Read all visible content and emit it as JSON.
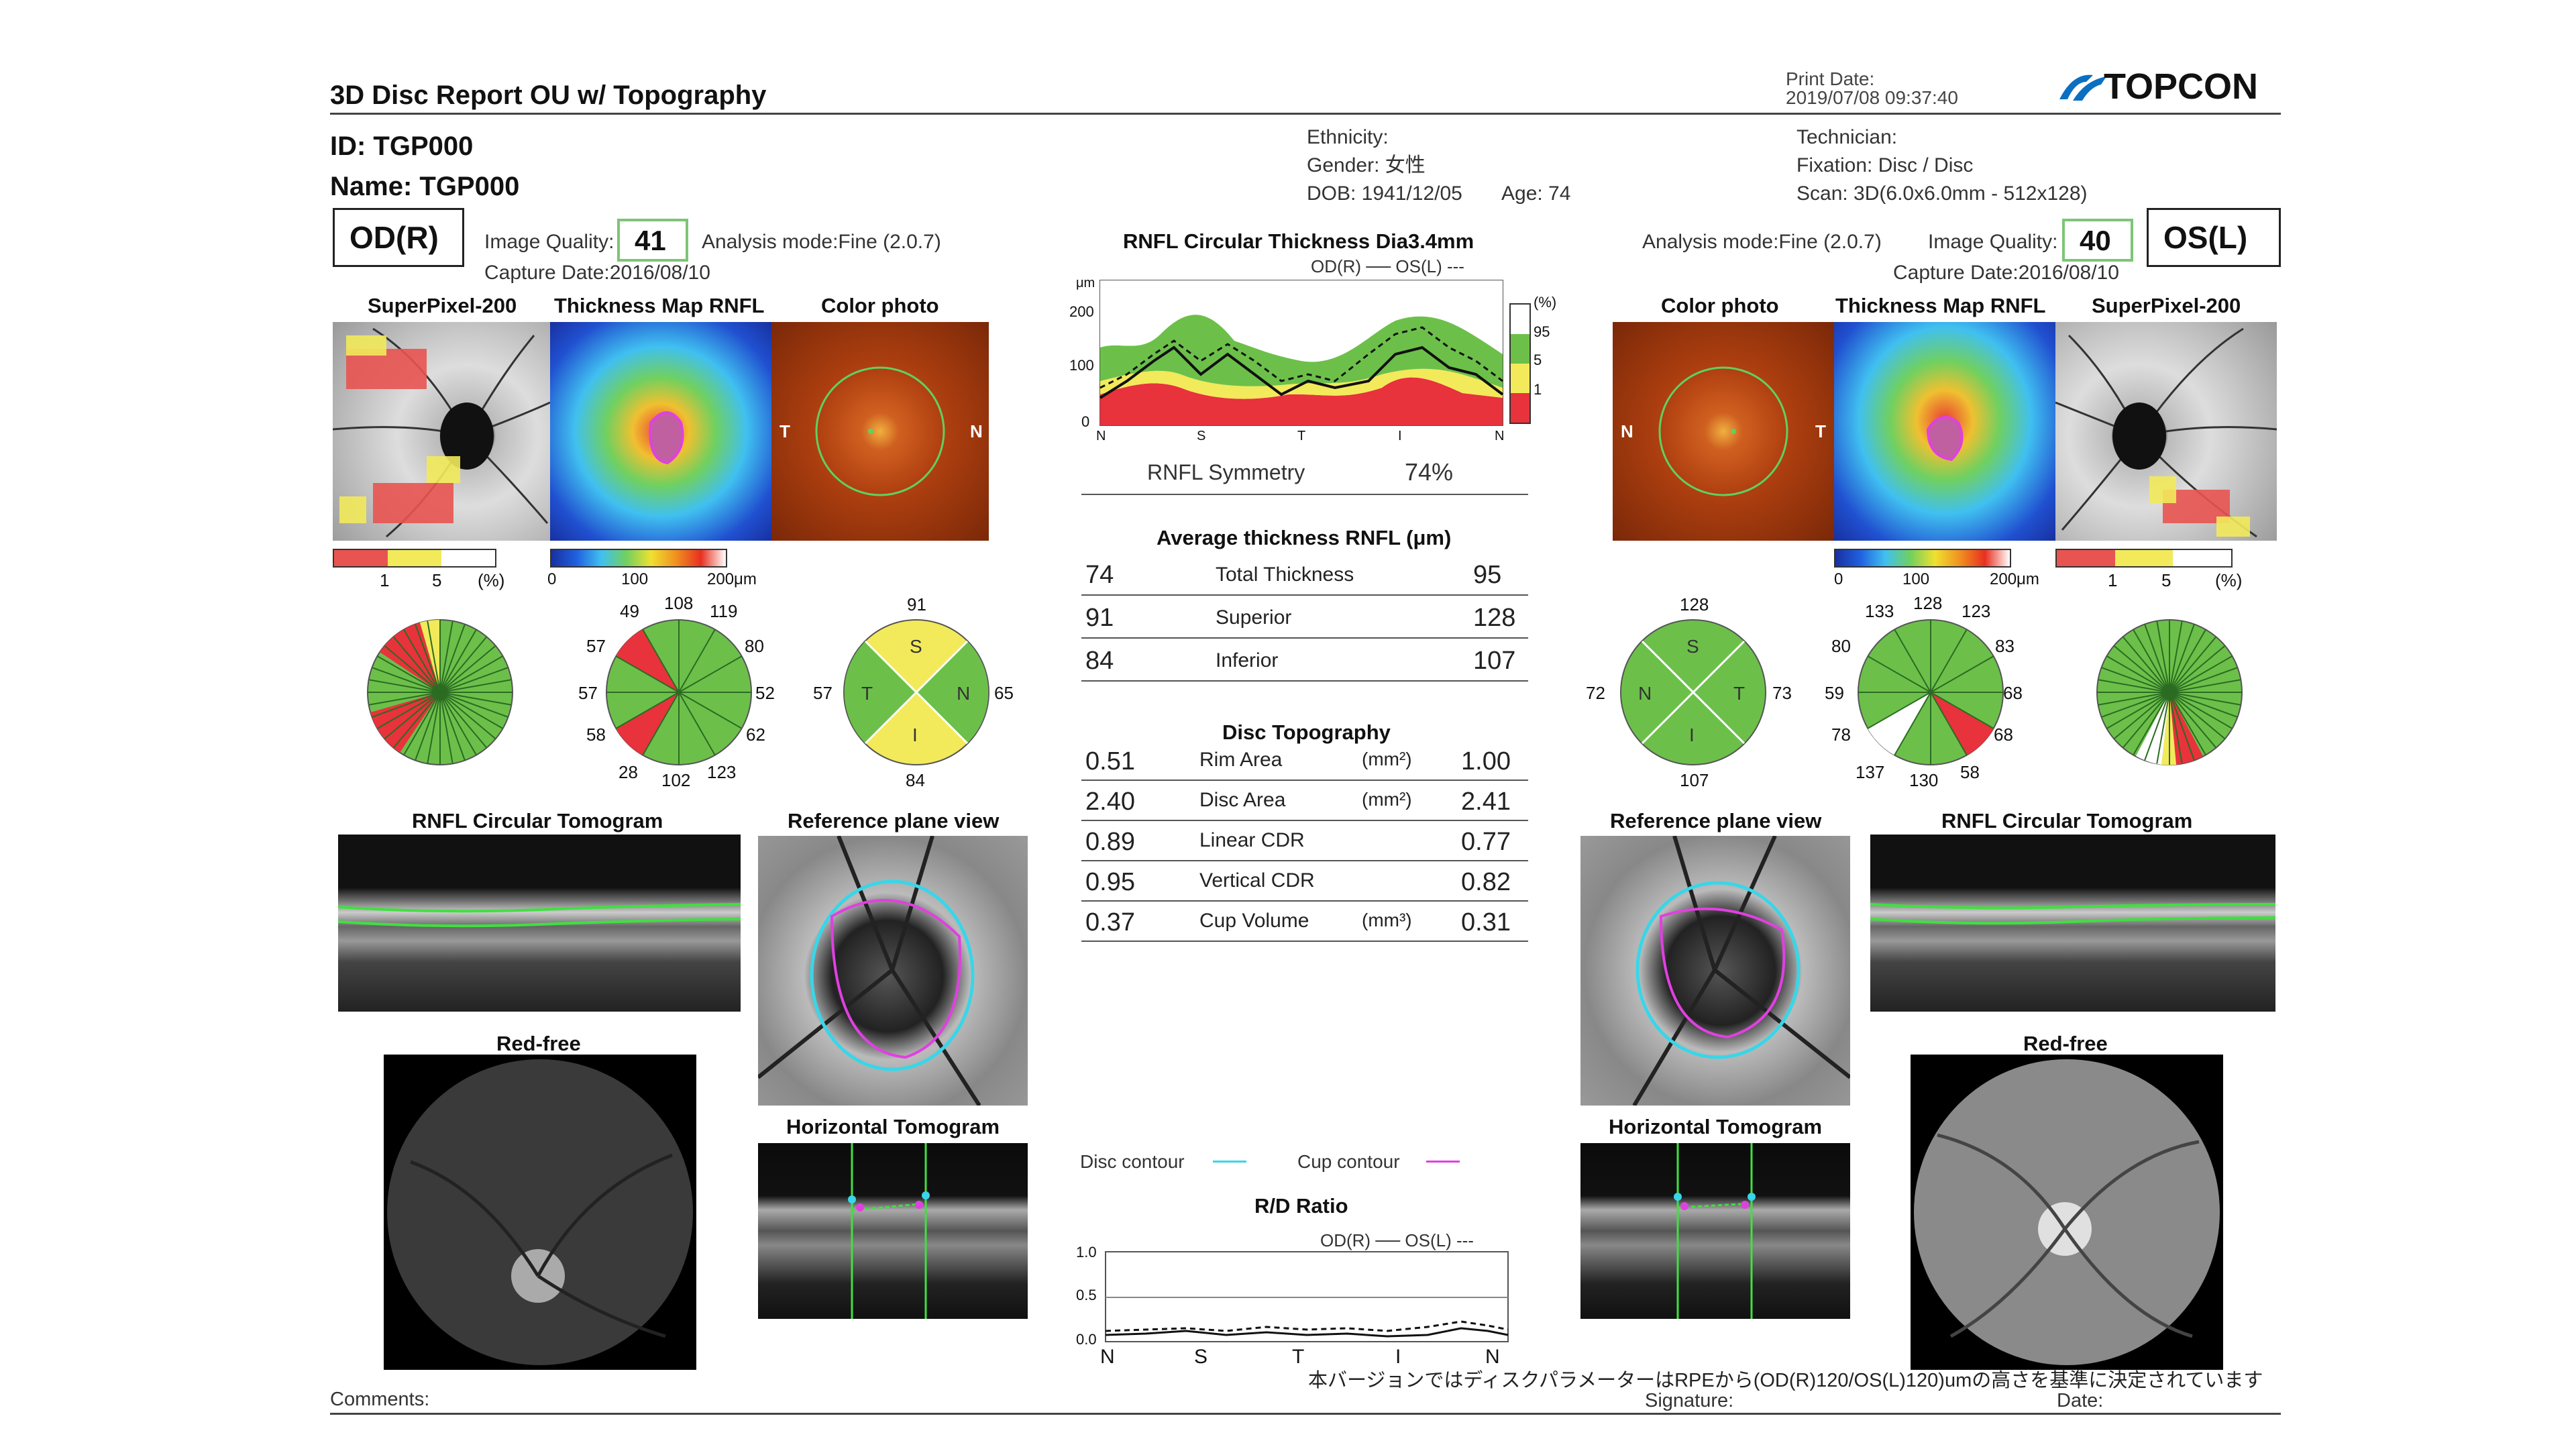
{
  "report": {
    "title": "3D Disc Report OU w/ Topography",
    "print_date_label": "Print Date:",
    "print_date_value": "2019/07/08 09:37:40",
    "brand": "TOPCON",
    "id": "ID: TGP000",
    "name": "Name: TGP000",
    "ethnicity": "Ethnicity:",
    "gender": "Gender: 女性",
    "dob": "DOB: 1941/12/05",
    "age": "Age: 74",
    "technician": "Technician:",
    "fixation": "Fixation: Disc / Disc",
    "scan": "Scan: 3D(6.0x6.0mm - 512x128)",
    "comments": "Comments:",
    "signature": "Signature:",
    "date": "Date:",
    "footnote": "本バージョンではディスクパラメーターはRPEから(OD(R)120/OS(L)120)umの高さを基準に決定されています"
  },
  "od": {
    "label": "OD(R)",
    "image_quality_label": "Image Quality:",
    "image_quality": "41",
    "analysis_mode": "Analysis mode:Fine (2.0.7)",
    "capture_date": "Capture Date:2016/08/10",
    "superpixel_title": "SuperPixel-200",
    "thickness_title": "Thickness Map RNFL",
    "color_title": "Color photo",
    "sp_scale": [
      "1",
      "5",
      "(%)"
    ],
    "tm_scale": [
      "0",
      "100",
      "200μm"
    ],
    "photo_T": "T",
    "photo_N": "N",
    "sector12": {
      "top_l": "49",
      "top": "108",
      "top_r": "119",
      "ul": "57",
      "ur": "80",
      "l": "57",
      "r": "52",
      "ll": "58",
      "lr": "62",
      "bot_l": "28",
      "bot": "102",
      "bot_r": "123"
    },
    "quad": {
      "S": "S",
      "T": "T",
      "N": "N",
      "I": "I",
      "top": "91",
      "left": "57",
      "right": "65",
      "bottom": "84"
    },
    "tomogram_title": "RNFL Circular Tomogram",
    "refplane_title": "Reference plane view",
    "redfree_title": "Red-free",
    "horiz_title": "Horizontal Tomogram"
  },
  "os": {
    "label": "OS(L)",
    "image_quality_label": "Image Quality:",
    "image_quality": "40",
    "analysis_mode": "Analysis mode:Fine (2.0.7)",
    "capture_date": "Capture Date:2016/08/10",
    "superpixel_title": "SuperPixel-200",
    "thickness_title": "Thickness Map RNFL",
    "color_title": "Color photo",
    "sp_scale": [
      "1",
      "5",
      "(%)"
    ],
    "tm_scale": [
      "0",
      "100",
      "200μm"
    ],
    "photo_T": "T",
    "photo_N": "N",
    "sector12": {
      "top_l": "133",
      "top": "128",
      "top_r": "123",
      "ul": "80",
      "ur": "83",
      "l": "59",
      "r": "68",
      "ll": "78",
      "lr": "68",
      "bot_l": "137",
      "bot": "130",
      "bot_r": "58"
    },
    "quad": {
      "S": "S",
      "T": "T",
      "N": "N",
      "I": "I",
      "top": "128",
      "left": "72",
      "right": "73",
      "bottom": "107"
    },
    "tomogram_title": "RNFL Circular Tomogram",
    "refplane_title": "Reference plane view",
    "redfree_title": "Red-free",
    "horiz_title": "Horizontal Tomogram"
  },
  "center": {
    "rnfl_title": "RNFL Circular Thickness Dia3.4mm",
    "rnfl_legend": "OD(R) ── OS(L) ---",
    "rnfl_unit": "μm",
    "rnfl_yticks": [
      "200",
      "100",
      "0"
    ],
    "rnfl_xticks": [
      "N",
      "S",
      "T",
      "I",
      "N"
    ],
    "norm_legend": [
      "(%)",
      "95",
      "5",
      "1"
    ],
    "symmetry_label": "RNFL Symmetry",
    "symmetry_value": "74%",
    "avg_title": "Average thickness RNFL (μm)",
    "avg_rows": [
      {
        "od": "74",
        "label": "Total Thickness",
        "os": "95"
      },
      {
        "od": "91",
        "label": "Superior",
        "os": "128"
      },
      {
        "od": "84",
        "label": "Inferior",
        "os": "107"
      }
    ],
    "topo_title": "Disc Topography",
    "topo_rows": [
      {
        "od": "0.51",
        "label": "Rim Area",
        "unit": "(mm²)",
        "os": "1.00"
      },
      {
        "od": "2.40",
        "label": "Disc Area",
        "unit": "(mm²)",
        "os": "2.41"
      },
      {
        "od": "0.89",
        "label": "Linear CDR",
        "unit": "",
        "os": "0.77"
      },
      {
        "od": "0.95",
        "label": "Vertical CDR",
        "unit": "",
        "os": "0.82"
      },
      {
        "od": "0.37",
        "label": "Cup Volume",
        "unit": "(mm³)",
        "os": "0.31"
      }
    ],
    "disc_contour": "Disc contour",
    "cup_contour": "Cup contour",
    "rd_title": "R/D Ratio",
    "rd_legend": "OD(R) ── OS(L) ---",
    "rd_yticks": [
      "1.0",
      "0.5",
      "0.0"
    ],
    "rd_xticks": [
      "N",
      "S",
      "T",
      "I",
      "N"
    ]
  },
  "colors": {
    "normal_green": "#6cc04a",
    "border_yellow": "#f2ea5a",
    "outside_red": "#e8323c",
    "quality_box": "#7cc576",
    "disc_cyan": "#38d6e8",
    "cup_magenta": "#e040e0"
  }
}
